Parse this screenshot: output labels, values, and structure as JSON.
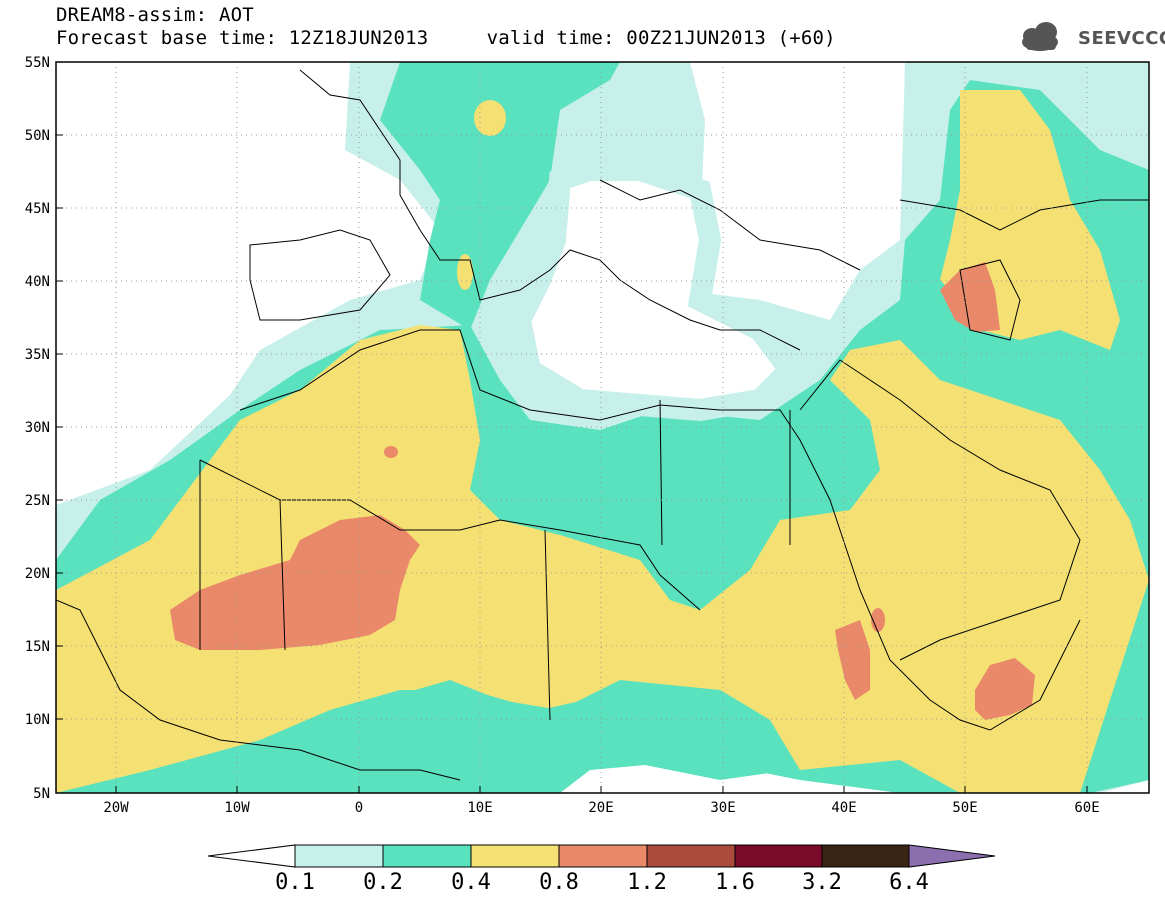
{
  "title": {
    "line1": "DREAM8-assim: AOT",
    "line2": "Forecast base time: 12Z18JUN2013     valid time: 00Z21JUN2013 (+60)"
  },
  "logo": {
    "text": "SEEVCCC",
    "icon": "cloud-icon",
    "color": "#555555"
  },
  "axes": {
    "x_ticks": [
      "20W",
      "10W",
      "0",
      "10E",
      "20E",
      "30E",
      "40E",
      "50E",
      "60E"
    ],
    "y_ticks": [
      "55N",
      "50N",
      "45N",
      "40N",
      "35N",
      "30N",
      "25N",
      "20N",
      "15N",
      "10N",
      "5N"
    ]
  },
  "colorbar": {
    "labels": [
      "0.1",
      "0.2",
      "0.4",
      "0.8",
      "1.2",
      "1.6",
      "3.2",
      "6.4"
    ],
    "colors": [
      "#ffffff",
      "#c8f0eb",
      "#5ae1be",
      "#f5e173",
      "#e9896a",
      "#a94c3c",
      "#7a0a2a",
      "#3a2414",
      "#8c6fae"
    ]
  },
  "colors": {
    "white": "#ffffff",
    "light_cyan": "#c8f0eb",
    "green": "#5ae1be",
    "yellow": "#f5e173",
    "salmon": "#e9896a"
  }
}
